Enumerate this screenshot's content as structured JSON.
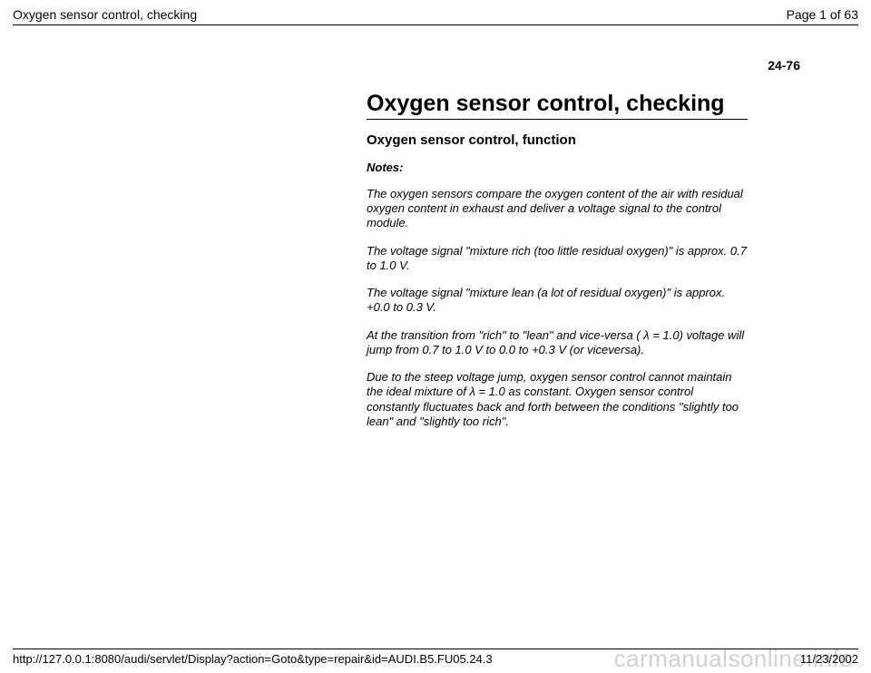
{
  "header": {
    "title": "Oxygen sensor control, checking",
    "page_indicator": "Page 1 of 63"
  },
  "page_number": "24-76",
  "content": {
    "main_heading": "Oxygen sensor control, checking",
    "sub_heading": "Oxygen sensor control, function",
    "notes_label": "Notes:",
    "notes": [
      "The oxygen sensors compare the oxygen content of the air with residual oxygen content in exhaust and deliver a voltage signal to the control module.",
      "The voltage signal \"mixture rich (too little residual oxygen)\" is approx. 0.7 to 1.0 V.",
      "The voltage signal \"mixture lean (a lot of residual oxygen)\" is approx. +0.0 to 0.3 V.",
      "At the transition from \"rich\" to \"lean\" and vice-versa ( λ = 1.0) voltage will jump from 0.7 to 1.0 V to 0.0 to +0.3 V (or viceversa).",
      "Due to the steep voltage jump, oxygen sensor control cannot maintain the ideal mixture of  λ = 1.0 as constant. Oxygen sensor control constantly fluctuates back and forth between the conditions \"slightly too lean\" and \"slightly too rich\"."
    ]
  },
  "footer": {
    "url": "http://127.0.0.1:8080/audi/servlet/Display?action=Goto&type=repair&id=AUDI.B5.FU05.24.3",
    "date": "11/23/2002"
  },
  "watermark": "carmanualsonline.info"
}
